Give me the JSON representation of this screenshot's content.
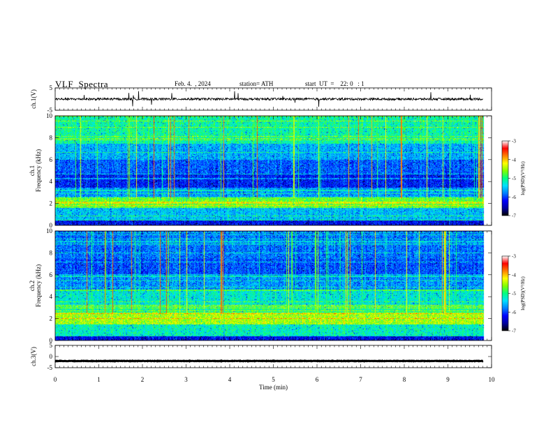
{
  "header": {
    "title": "VLF  Spectra",
    "date": "Feb. 4.  , 2024",
    "station": "station= ATH",
    "start": "start  UT  =    22: 0   : 1"
  },
  "chart_data": [
    {
      "type": "line",
      "name": "ch1-waveform",
      "ylabel": "ch.1(V)",
      "ylim": [
        -5,
        5
      ],
      "yticks": [
        "5",
        "-5"
      ],
      "xlim": [
        0,
        10
      ],
      "baseline": 0
    },
    {
      "type": "heatmap",
      "name": "ch1-spectrogram",
      "ylabel": "ch.1\nFrequency  (kHz)",
      "ylim": [
        0,
        10
      ],
      "yticks": [
        "0",
        "2",
        "4",
        "6",
        "8",
        "10"
      ],
      "xlim": [
        0,
        10
      ],
      "data_end_min": 9.8,
      "colorbar": {
        "label": "log(PSD)(V²/Hz)",
        "range": [
          -7,
          -3
        ],
        "ticks": [
          "-3",
          "-4",
          "-5",
          "-6",
          "-7"
        ]
      }
    },
    {
      "type": "heatmap",
      "name": "ch2-spectrogram",
      "ylabel": "ch.2\nFrequency  (kHz)",
      "ylim": [
        0,
        10
      ],
      "yticks": [
        "0",
        "2",
        "4",
        "6",
        "8",
        "10"
      ],
      "xlim": [
        0,
        10
      ],
      "data_end_min": 9.8,
      "colorbar": {
        "label": "log(PSD)(V²/Hz)",
        "range": [
          -7,
          -3
        ],
        "ticks": [
          "-3",
          "-4",
          "-5",
          "-6",
          "-7"
        ]
      }
    },
    {
      "type": "line",
      "name": "ch3-waveform",
      "ylabel": "ch.3(V)",
      "ylim": [
        -5,
        5
      ],
      "yticks": [
        "5",
        "0",
        "-5"
      ],
      "xlim": [
        0,
        10
      ],
      "baseline": -2
    }
  ],
  "xaxis": {
    "label": "Time  (min)",
    "ticks": [
      "0",
      "1",
      "2",
      "3",
      "4",
      "5",
      "6",
      "7",
      "8",
      "9",
      "10"
    ]
  },
  "colors": {
    "colormap": [
      "#000000",
      "#0000a0",
      "#0000ff",
      "#0080ff",
      "#00e0ff",
      "#00ff80",
      "#80ff00",
      "#ffff00",
      "#ff8000",
      "#ff0000",
      "#ffffff"
    ]
  }
}
